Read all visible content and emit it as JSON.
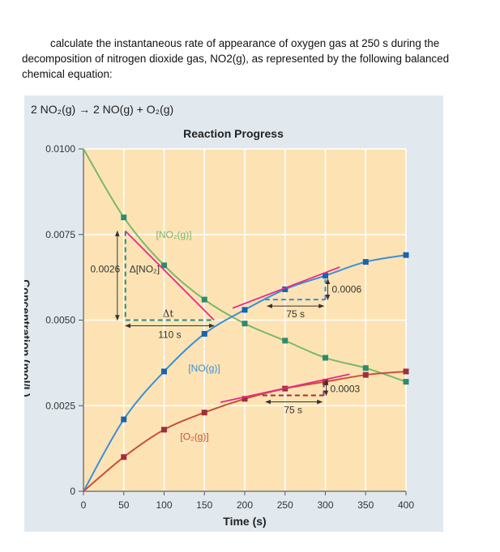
{
  "question": {
    "line1": "calculate the instantaneous rate of appearance of oxygen gas at 250 s during the",
    "line2": "decomposition of nitrogen dioxide gas, NO2(g), as represented by the following balanced",
    "line3": "chemical equation:"
  },
  "equation": "2 NO₂(g) → 2 NO(g) + O₂(g)",
  "colors": {
    "no2": "#7ab86a",
    "no2_marker": "#2e8b6e",
    "no": "#3a8fd8",
    "no_marker": "#1764b0",
    "o2": "#c8503a",
    "o2_marker": "#9e2f3a",
    "tangent": "#e8288a",
    "plot_bg": "#fde3b4",
    "panel_bg": "#e1e9ef"
  },
  "chart_data": {
    "type": "line",
    "title": "Reaction Progress",
    "xlabel": "Time (s)",
    "ylabel": "Concentration (mol/L)",
    "xlim": [
      0,
      400
    ],
    "ylim": [
      0,
      0.01
    ],
    "xticks": [
      "0",
      "50",
      "100",
      "150",
      "200",
      "250",
      "300",
      "350",
      "400"
    ],
    "yticks": [
      "0",
      "0.0025",
      "0.0050",
      "0.0075",
      "0.0100"
    ],
    "grid": true,
    "x": [
      0,
      50,
      100,
      150,
      200,
      250,
      300,
      350,
      400
    ],
    "series": [
      {
        "name": "[NO₂(g)]",
        "values": [
          0.01,
          0.008,
          0.0066,
          0.0056,
          0.0049,
          0.0044,
          0.0039,
          0.0036,
          0.0032
        ]
      },
      {
        "name": "[NO(g)]",
        "values": [
          0,
          0.0021,
          0.0035,
          0.0046,
          0.0053,
          0.0059,
          0.0063,
          0.0067,
          0.0069
        ]
      },
      {
        "name": "[O₂(g)]",
        "values": [
          0,
          0.001,
          0.0018,
          0.0023,
          0.0027,
          0.003,
          0.0032,
          0.0034,
          0.0035
        ]
      }
    ],
    "annotations": {
      "no2_dy": "0.0026",
      "no2_dy_label": "Δ[NO₂]",
      "no2_dt_symbol": "Δt",
      "no2_dt": "110 s",
      "no_dt": "75 s",
      "no_dy": "0.0006",
      "o2_dt": "75 s",
      "o2_dy": "0.0003"
    }
  }
}
